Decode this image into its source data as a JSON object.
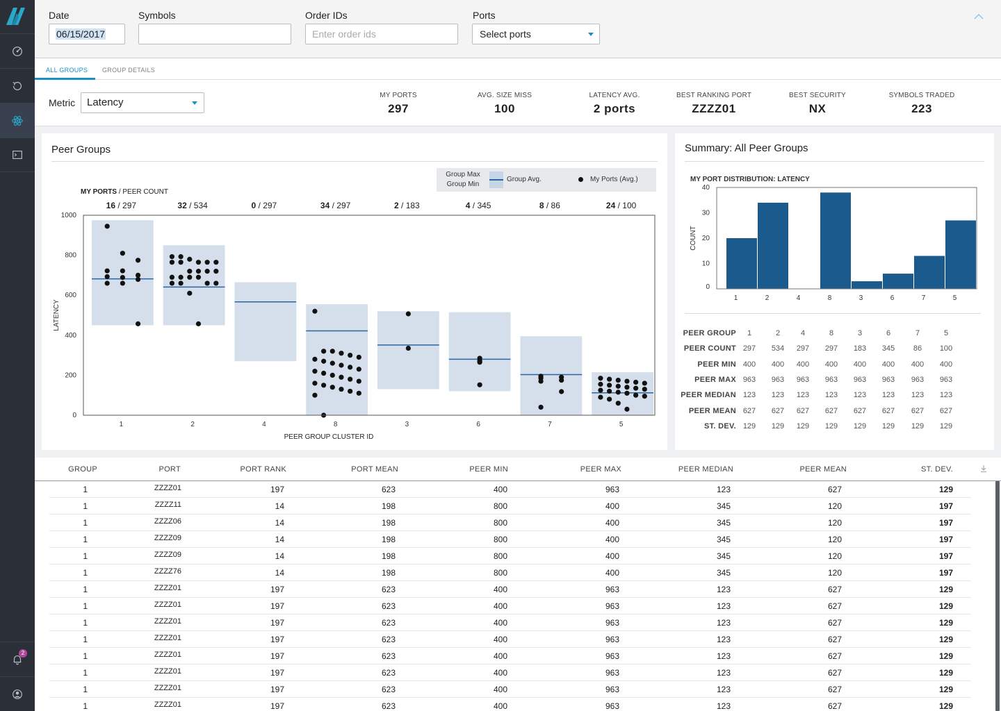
{
  "filters": {
    "date_label": "Date",
    "date_value": "06/15/2017",
    "symbols_label": "Symbols",
    "symbols_value": "",
    "order_ids_label": "Order IDs",
    "order_ids_placeholder": "Enter order ids",
    "ports_label": "Ports",
    "ports_value": "Select ports"
  },
  "sidebar": {
    "items": [
      {
        "name": "gauge-icon"
      },
      {
        "name": "history-icon"
      },
      {
        "name": "atom-icon",
        "active": true
      },
      {
        "name": "terminal-icon"
      }
    ],
    "notifications_count": "2"
  },
  "tabs": [
    {
      "label": "ALL GROUPS",
      "active": true
    },
    {
      "label": "GROUP DETAILS",
      "active": false
    }
  ],
  "metric": {
    "label": "Metric",
    "value": "Latency"
  },
  "kpis": [
    {
      "label": "MY PORTS",
      "value": "297"
    },
    {
      "label": "AVG. SIZE MISS",
      "value": "100"
    },
    {
      "label": "LATENCY AVG.",
      "value": "2 ports"
    },
    {
      "label": "BEST RANKING PORT",
      "value": "ZZZZ01"
    },
    {
      "label": "BEST SECURITY",
      "value": "NX"
    },
    {
      "label": "SYMBOLS TRADED",
      "value": "223"
    }
  ],
  "peer_groups": {
    "title": "Peer Groups",
    "legend": {
      "max": "Group Max",
      "min": "Group Min",
      "avg": "Group Avg.",
      "ports": "My Ports (Avg.)"
    },
    "header_bold": "MY PORTS",
    "header_rest": " / PEER COUNT",
    "ylabel": "LATENCY",
    "xlabel": "PEER GROUP CLUSTER ID"
  },
  "summary": {
    "title": "Summary: All Peer Groups",
    "dist_title": "MY PORT DISTRIBUTION: LATENCY",
    "ylabel": "COUNT",
    "stats": [
      {
        "label": "PEER GROUP",
        "values": [
          "1",
          "2",
          "4",
          "8",
          "3",
          "6",
          "7",
          "5"
        ]
      },
      {
        "label": "PEER COUNT",
        "values": [
          "297",
          "534",
          "297",
          "297",
          "183",
          "345",
          "86",
          "100"
        ]
      },
      {
        "label": "PEER MIN",
        "values": [
          "400",
          "400",
          "400",
          "400",
          "400",
          "400",
          "400",
          "400"
        ]
      },
      {
        "label": "PEER MAX",
        "values": [
          "963",
          "963",
          "963",
          "963",
          "963",
          "963",
          "963",
          "963"
        ]
      },
      {
        "label": "PEER MEDIAN",
        "values": [
          "123",
          "123",
          "123",
          "123",
          "123",
          "123",
          "123",
          "123"
        ]
      },
      {
        "label": "PEER MEAN",
        "values": [
          "627",
          "627",
          "627",
          "627",
          "627",
          "627",
          "627",
          "627"
        ]
      },
      {
        "label": "ST. DEV.",
        "values": [
          "129",
          "129",
          "129",
          "129",
          "129",
          "129",
          "129",
          "129"
        ]
      }
    ]
  },
  "table": {
    "columns": [
      "GROUP",
      "PORT",
      "PORT RANK",
      "PORT MEAN",
      "PEER MIN",
      "PEER MAX",
      "PEER MEDIAN",
      "PEER MEAN",
      "ST. DEV."
    ],
    "rows": [
      [
        "1",
        "ZZZZ01",
        "197",
        "623",
        "400",
        "963",
        "123",
        "627",
        "129"
      ],
      [
        "1",
        "ZZZZ11",
        "14",
        "198",
        "800",
        "400",
        "345",
        "120",
        "197"
      ],
      [
        "1",
        "ZZZZ06",
        "14",
        "198",
        "800",
        "400",
        "345",
        "120",
        "197"
      ],
      [
        "1",
        "ZZZZ09",
        "14",
        "198",
        "800",
        "400",
        "345",
        "120",
        "197"
      ],
      [
        "1",
        "ZZZZ09",
        "14",
        "198",
        "800",
        "400",
        "345",
        "120",
        "197"
      ],
      [
        "1",
        "ZZZZ76",
        "14",
        "198",
        "800",
        "400",
        "345",
        "120",
        "197"
      ],
      [
        "1",
        "ZZZZ01",
        "197",
        "623",
        "400",
        "963",
        "123",
        "627",
        "129"
      ],
      [
        "1",
        "ZZZZ01",
        "197",
        "623",
        "400",
        "963",
        "123",
        "627",
        "129"
      ],
      [
        "1",
        "ZZZZ01",
        "197",
        "623",
        "400",
        "963",
        "123",
        "627",
        "129"
      ],
      [
        "1",
        "ZZZZ01",
        "197",
        "623",
        "400",
        "963",
        "123",
        "627",
        "129"
      ],
      [
        "1",
        "ZZZZ01",
        "197",
        "623",
        "400",
        "963",
        "123",
        "627",
        "129"
      ],
      [
        "1",
        "ZZZZ01",
        "197",
        "623",
        "400",
        "963",
        "123",
        "627",
        "129"
      ],
      [
        "1",
        "ZZZZ01",
        "197",
        "623",
        "400",
        "963",
        "123",
        "627",
        "129"
      ],
      [
        "1",
        "ZZZZ01",
        "197",
        "623",
        "400",
        "963",
        "123",
        "627",
        "129"
      ]
    ]
  },
  "chart_data": [
    {
      "type": "scatter",
      "title": "Peer Groups",
      "xlabel": "PEER GROUP CLUSTER ID",
      "ylabel": "LATENCY",
      "ylim": [
        0,
        1000
      ],
      "yticks": [
        0,
        200,
        400,
        600,
        800,
        1000
      ],
      "categories": [
        "1",
        "2",
        "4",
        "8",
        "3",
        "6",
        "7",
        "5"
      ],
      "my_ports": [
        16,
        32,
        0,
        34,
        2,
        4,
        8,
        24
      ],
      "peer_count": [
        297,
        534,
        297,
        297,
        183,
        345,
        86,
        100
      ],
      "group_min": [
        450,
        450,
        270,
        0,
        130,
        120,
        0,
        0
      ],
      "group_max": [
        975,
        850,
        665,
        555,
        520,
        515,
        395,
        215
      ],
      "group_avg": [
        682,
        641,
        567,
        422,
        351,
        280,
        203,
        112
      ],
      "points": [
        [
          945,
          810,
          775,
          722,
          722,
          700,
          693,
          689,
          679,
          660,
          660,
          457
        ],
        [
          793,
          793,
          780,
          765,
          765,
          765,
          765,
          765,
          720,
          720,
          720,
          720,
          690,
          690,
          690,
          690,
          660,
          660,
          660,
          660,
          610,
          457
        ],
        [],
        [
          520,
          320,
          320,
          310,
          300,
          290,
          280,
          270,
          260,
          250,
          240,
          230,
          220,
          210,
          200,
          190,
          180,
          170,
          160,
          150,
          140,
          130,
          120,
          110,
          100,
          0
        ],
        [
          507,
          335
        ],
        [
          285,
          272,
          265,
          152
        ],
        [
          195,
          190,
          185,
          175,
          170,
          118,
          40
        ],
        [
          185,
          180,
          175,
          170,
          165,
          160,
          155,
          150,
          145,
          140,
          135,
          130,
          125,
          120,
          115,
          110,
          100,
          95,
          90,
          80,
          60,
          30
        ]
      ],
      "legend": [
        "Group Max",
        "Group Min",
        "Group Avg.",
        "My Ports (Avg.)"
      ]
    },
    {
      "type": "bar",
      "title": "MY PORT DISTRIBUTION: LATENCY",
      "ylabel": "COUNT",
      "ylim": [
        0,
        40
      ],
      "yticks": [
        0,
        10,
        20,
        30,
        40
      ],
      "categories": [
        "1",
        "2",
        "4",
        "8",
        "3",
        "6",
        "7",
        "5"
      ],
      "values": [
        20,
        34,
        0,
        38,
        3,
        6,
        13,
        27
      ]
    }
  ],
  "colors": {
    "accent": "#1a8fc6",
    "bar": "#1b5a8c",
    "band": "#d4dfeb",
    "avg_line": "#2b64a0",
    "sidebar": "#2b2f38"
  }
}
